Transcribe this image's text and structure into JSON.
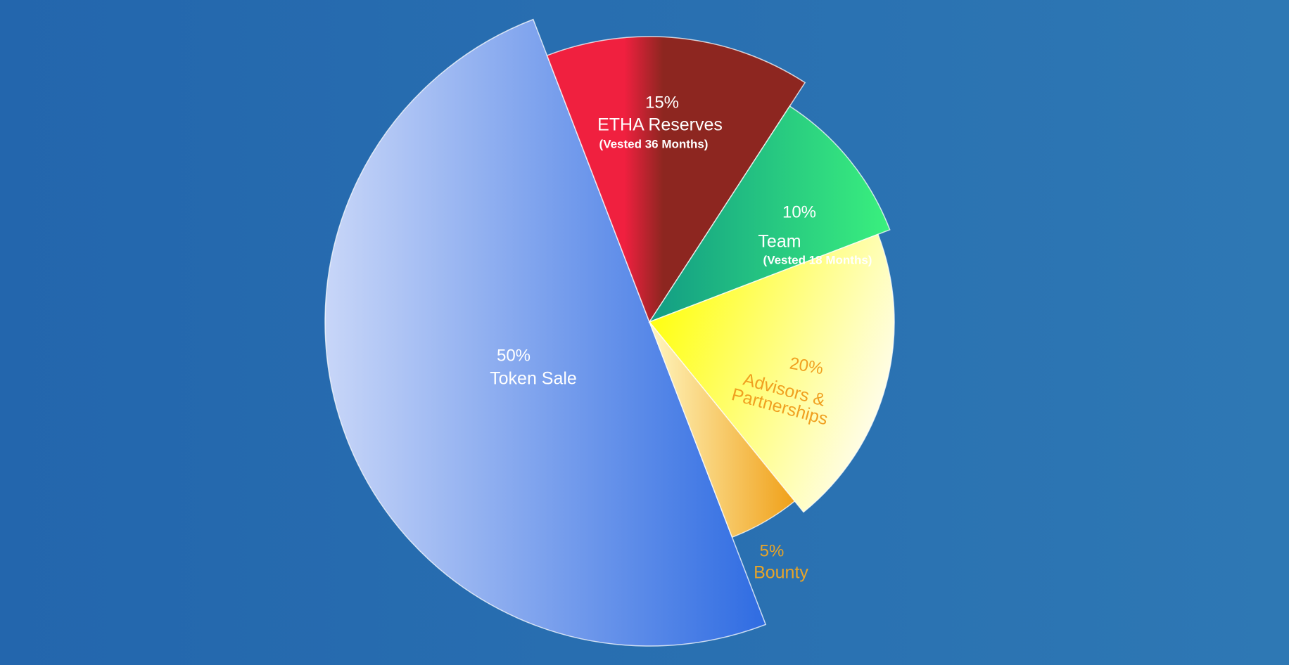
{
  "chart_data": {
    "type": "pie",
    "categories": [
      "Token Sale",
      "ETHA Reserves",
      "Team",
      "Advisors & Partnerships",
      "Bounty"
    ],
    "values": [
      50,
      15,
      10,
      20,
      5
    ],
    "value_labels": [
      "50%",
      "15%",
      "10%",
      "20%",
      "5%"
    ],
    "notes": [
      null,
      "(Vested 36 Months)",
      "(Vested 18 Months)",
      null,
      null
    ],
    "gradients": [
      [
        "#c8d6f8",
        "#2f6ce2"
      ],
      [
        "#f0203f",
        "#8d2620"
      ],
      [
        "#129c84",
        "#3af07e"
      ],
      [
        "#ffff1a",
        "#fffdf0"
      ],
      [
        "#f0a018",
        "#fff6c0"
      ]
    ],
    "label_colors": [
      "#ffffff",
      "#ffffff",
      "#ffffff",
      "#f0a020",
      "#e8a428"
    ]
  }
}
